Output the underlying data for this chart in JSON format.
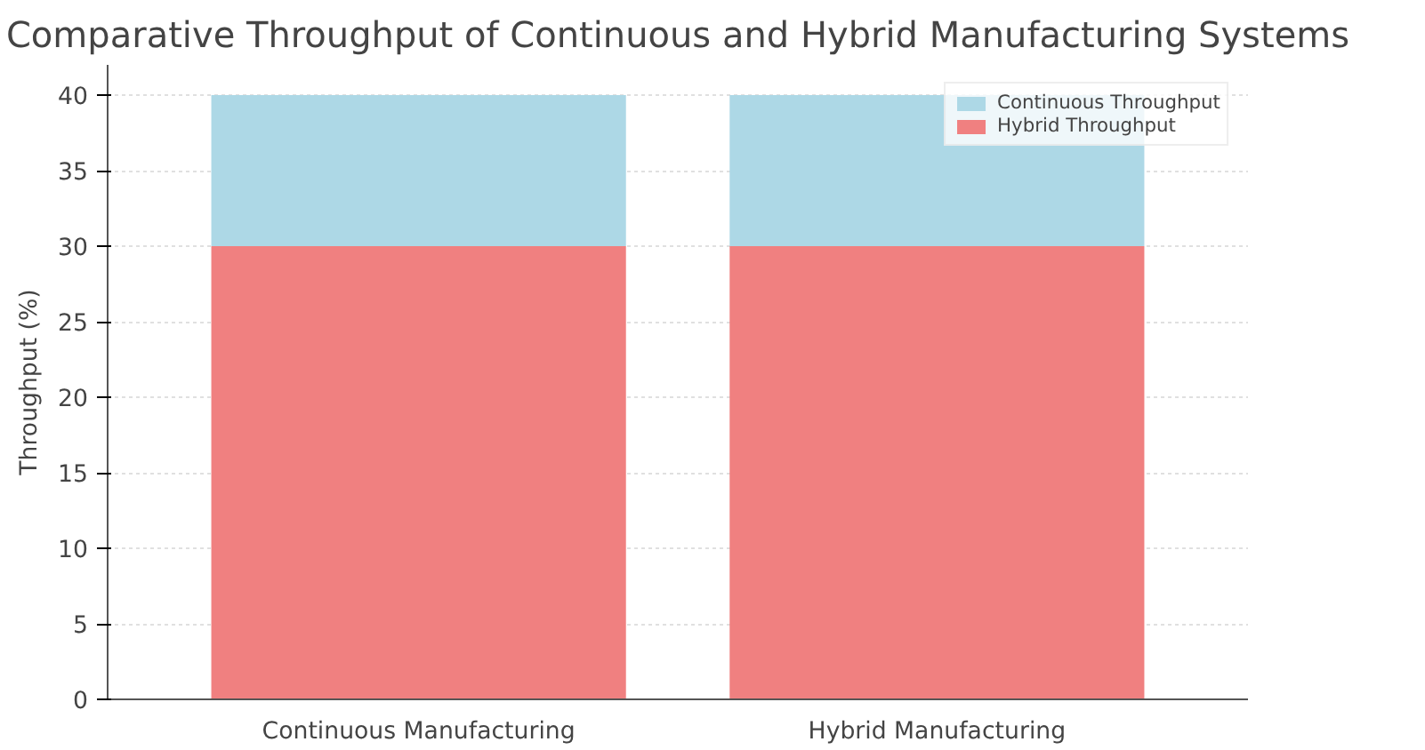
{
  "chart_data": {
    "type": "bar",
    "title": "Comparative Throughput of Continuous and Hybrid Manufacturing Systems",
    "ylabel": "Throughput (%)",
    "categories": [
      "Continuous Manufacturing",
      "Hybrid Manufacturing"
    ],
    "stacked": true,
    "series": [
      {
        "name": "Hybrid Throughput",
        "color": "#f08080",
        "values": [
          30,
          30
        ]
      },
      {
        "name": "Continuous Throughput",
        "color": "#add8e6",
        "values": [
          10,
          10
        ]
      }
    ],
    "ylim": [
      0,
      42
    ],
    "yticks": [
      0,
      5,
      10,
      15,
      20,
      25,
      30,
      35,
      40
    ],
    "grid": true,
    "legend": "top right"
  }
}
